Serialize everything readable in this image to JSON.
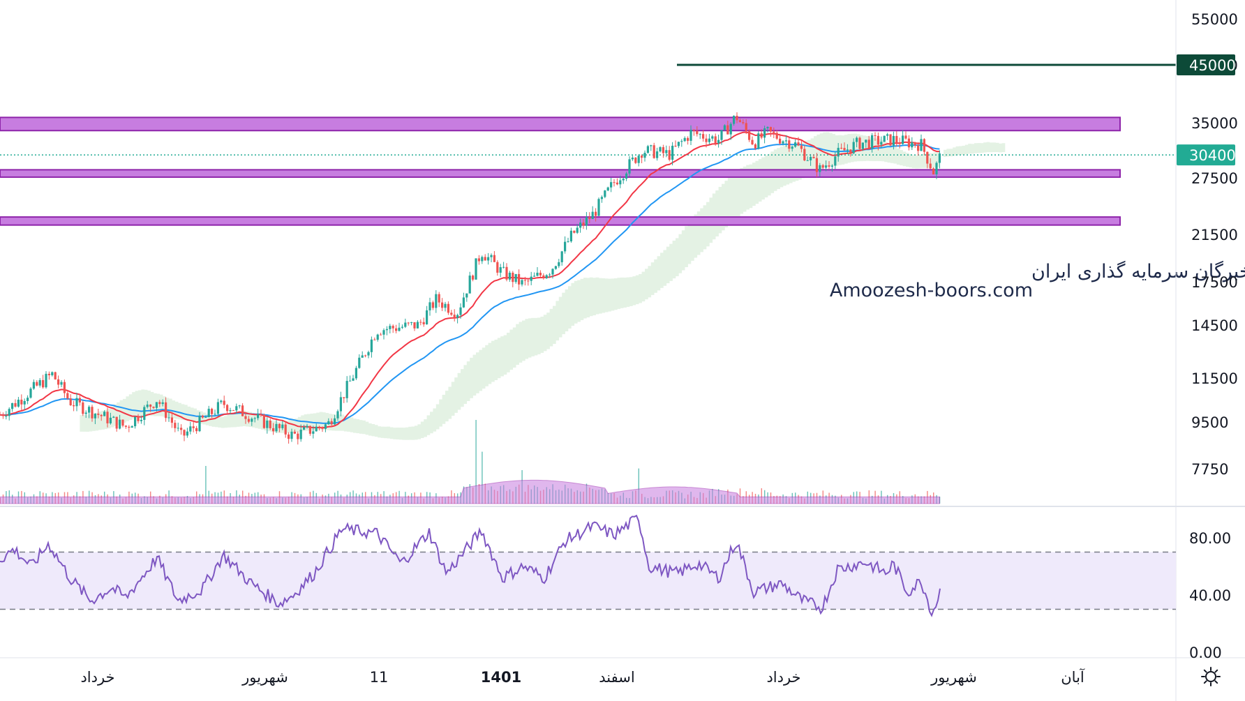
{
  "chart_data": {
    "type": "candlestick",
    "price_axis": {
      "ticks": [
        "55000",
        "45000",
        "35000",
        "27500",
        "21500",
        "17500",
        "14500",
        "11500",
        "9500",
        "7750"
      ],
      "tick_values": [
        55000,
        45000,
        35000,
        27500,
        21500,
        17500,
        14500,
        11500,
        9500,
        7750
      ],
      "scale": "log",
      "current_price_label": "30400",
      "current_price": 30400,
      "target_label": "45000",
      "target_price": 45000
    },
    "time_axis": {
      "labels": [
        "خرداد",
        "شهریور",
        "11",
        "1401",
        "اسفند",
        "خرداد",
        "شهریور",
        "آبان"
      ],
      "bold": [
        false,
        false,
        false,
        true,
        false,
        false,
        false,
        false
      ]
    },
    "rsi_axis": {
      "ticks": [
        "80.00",
        "40.00",
        "0.00"
      ],
      "tick_values": [
        80,
        40,
        0
      ],
      "upper_band": 70,
      "lower_band": 30
    },
    "zones": [
      {
        "low": 33800,
        "high": 35800
      },
      {
        "low": 27600,
        "high": 28500
      },
      {
        "low": 22400,
        "high": 23200
      }
    ],
    "watermark": {
      "line1": "انجمن خبرگان سرمایه گذاری ایران",
      "line2": "Amoozesh-boors.com"
    },
    "colors": {
      "up": "#26a69a",
      "down": "#ef5350",
      "zone_fill": "#c77de0",
      "zone_stroke": "#8e24aa",
      "ema_fast": "#f23645",
      "ema_slow": "#2196f3",
      "cloud_up": "#e4f2e4",
      "cloud_down": "#fbe3e0",
      "target_line": "#0d4a38",
      "price_badge": "#22ab94",
      "rsi_line": "#7e57c2",
      "rsi_band": "#efeafb",
      "volume_area": "#c77de0"
    },
    "key_points": [
      {
        "t": 0,
        "price": 9800
      },
      {
        "t": 75,
        "price": 11700
      },
      {
        "t": 100,
        "price": 10400
      },
      {
        "t": 180,
        "price": 9300
      },
      {
        "t": 225,
        "price": 10500
      },
      {
        "t": 260,
        "price": 8900
      },
      {
        "t": 320,
        "price": 10300
      },
      {
        "t": 420,
        "price": 8950
      },
      {
        "t": 470,
        "price": 9400
      },
      {
        "t": 540,
        "price": 14200
      },
      {
        "t": 600,
        "price": 14500
      },
      {
        "t": 625,
        "price": 16200
      },
      {
        "t": 655,
        "price": 15300
      },
      {
        "t": 690,
        "price": 20000
      },
      {
        "t": 720,
        "price": 18200
      },
      {
        "t": 750,
        "price": 17300
      },
      {
        "t": 790,
        "price": 18500
      },
      {
        "t": 820,
        "price": 21500
      },
      {
        "t": 850,
        "price": 23500
      },
      {
        "t": 880,
        "price": 27000
      },
      {
        "t": 920,
        "price": 31000
      },
      {
        "t": 960,
        "price": 30500
      },
      {
        "t": 990,
        "price": 33500
      },
      {
        "t": 1030,
        "price": 32500
      },
      {
        "t": 1055,
        "price": 36000
      },
      {
        "t": 1080,
        "price": 32000
      },
      {
        "t": 1100,
        "price": 33500
      },
      {
        "t": 1140,
        "price": 31800
      },
      {
        "t": 1175,
        "price": 28500
      },
      {
        "t": 1200,
        "price": 30500
      },
      {
        "t": 1230,
        "price": 32000
      },
      {
        "t": 1280,
        "price": 32500
      },
      {
        "t": 1320,
        "price": 31800
      },
      {
        "t": 1338,
        "price": 28200
      },
      {
        "t": 1348,
        "price": 30400
      }
    ],
    "rsi_points": [
      {
        "t": 0,
        "v": 65
      },
      {
        "t": 20,
        "v": 72
      },
      {
        "t": 45,
        "v": 60
      },
      {
        "t": 70,
        "v": 76
      },
      {
        "t": 100,
        "v": 52
      },
      {
        "t": 130,
        "v": 36
      },
      {
        "t": 160,
        "v": 45
      },
      {
        "t": 180,
        "v": 38
      },
      {
        "t": 225,
        "v": 66
      },
      {
        "t": 255,
        "v": 36
      },
      {
        "t": 290,
        "v": 44
      },
      {
        "t": 320,
        "v": 68
      },
      {
        "t": 360,
        "v": 48
      },
      {
        "t": 400,
        "v": 34
      },
      {
        "t": 420,
        "v": 40
      },
      {
        "t": 450,
        "v": 55
      },
      {
        "t": 490,
        "v": 86
      },
      {
        "t": 540,
        "v": 83
      },
      {
        "t": 575,
        "v": 62
      },
      {
        "t": 615,
        "v": 84
      },
      {
        "t": 640,
        "v": 55
      },
      {
        "t": 690,
        "v": 85
      },
      {
        "t": 720,
        "v": 52
      },
      {
        "t": 750,
        "v": 60
      },
      {
        "t": 780,
        "v": 52
      },
      {
        "t": 810,
        "v": 78
      },
      {
        "t": 850,
        "v": 88
      },
      {
        "t": 880,
        "v": 82
      },
      {
        "t": 915,
        "v": 94
      },
      {
        "t": 930,
        "v": 60
      },
      {
        "t": 970,
        "v": 55
      },
      {
        "t": 1000,
        "v": 62
      },
      {
        "t": 1030,
        "v": 52
      },
      {
        "t": 1055,
        "v": 78
      },
      {
        "t": 1080,
        "v": 42
      },
      {
        "t": 1120,
        "v": 48
      },
      {
        "t": 1150,
        "v": 36
      },
      {
        "t": 1178,
        "v": 31
      },
      {
        "t": 1200,
        "v": 58
      },
      {
        "t": 1240,
        "v": 63
      },
      {
        "t": 1270,
        "v": 55
      },
      {
        "t": 1280,
        "v": 62
      },
      {
        "t": 1300,
        "v": 42
      },
      {
        "t": 1320,
        "v": 50
      },
      {
        "t": 1336,
        "v": 27
      },
      {
        "t": 1348,
        "v": 44
      }
    ],
    "volume_spikes": [
      {
        "t": 293,
        "v": 0.45
      },
      {
        "t": 680,
        "v": 1.0
      },
      {
        "t": 690,
        "v": 0.62
      },
      {
        "t": 750,
        "v": 0.4
      },
      {
        "t": 915,
        "v": 0.42
      }
    ]
  },
  "settings": {
    "gear_icon": "gear-icon"
  }
}
